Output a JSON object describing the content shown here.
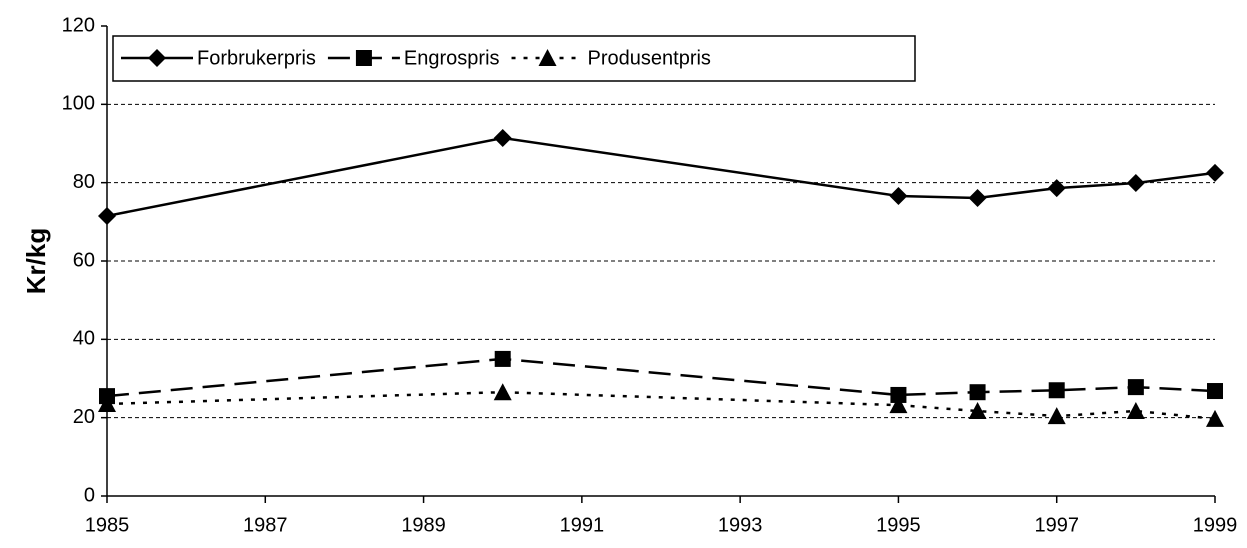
{
  "chart_data": {
    "type": "line",
    "y_label": "Kr/kg",
    "x": [
      1985,
      1990,
      1995,
      1996,
      1997,
      1998,
      1999
    ],
    "series": [
      {
        "name": "Forbrukerpris",
        "color": "#000000",
        "dash": "solid",
        "marker": "diamond",
        "values": [
          71.5,
          91.4,
          76.6,
          76.1,
          78.6,
          79.9,
          82.5
        ]
      },
      {
        "name": "Engrospris",
        "color": "#000000",
        "dash": "dashed",
        "marker": "square",
        "values": [
          25.5,
          35,
          25.8,
          26.5,
          27,
          27.8,
          26.8
        ]
      },
      {
        "name": "Produsentpris",
        "color": "#000000",
        "dash": "dotted",
        "marker": "triangle",
        "values": [
          23.5,
          26.5,
          23.2,
          21.7,
          20.4,
          21.7,
          19.7
        ]
      }
    ],
    "xlim": [
      1985,
      1999
    ],
    "xticks": [
      1985,
      1987,
      1989,
      1991,
      1993,
      1995,
      1997,
      1999
    ],
    "ylim": [
      0,
      120
    ],
    "yticks": [
      0,
      20,
      40,
      60,
      80,
      100,
      120
    ],
    "grid": true,
    "legend": "top-left"
  }
}
